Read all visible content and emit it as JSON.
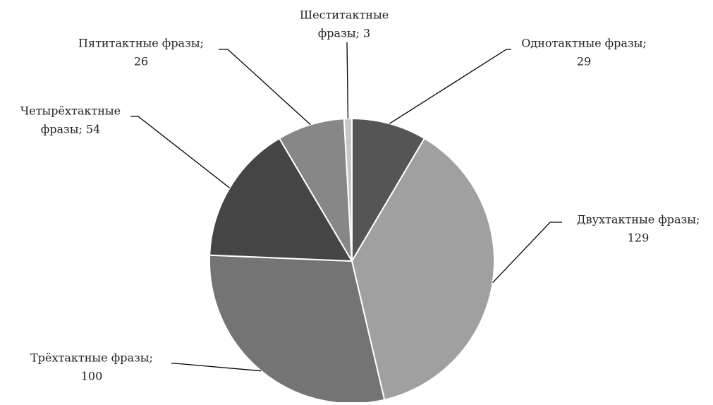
{
  "chart_data": {
    "type": "pie",
    "labels": [
      [
        "Однотактные фразы;",
        "29"
      ],
      [
        "Двухтактные фразы;",
        "129"
      ],
      [
        "Трёхтактные фразы;",
        "100"
      ],
      [
        "Четырёхтактные",
        "фразы; 54"
      ],
      [
        "Пятитактные фразы;",
        "26"
      ],
      [
        "Шеститактные",
        "фразы; 3"
      ]
    ],
    "values": [
      29,
      129,
      100,
      54,
      26,
      3
    ],
    "colors": [
      "#555555",
      "#a0a0a0",
      "#747474",
      "#454545",
      "#878787",
      "#c8c8c8"
    ]
  }
}
